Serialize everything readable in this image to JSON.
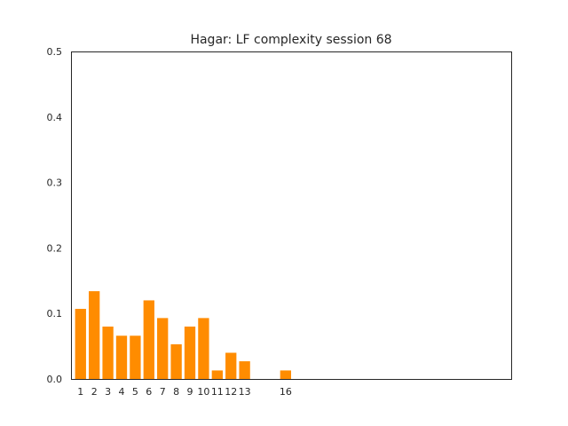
{
  "chart_data": {
    "type": "bar",
    "title": "Hagar: LF complexity session 68",
    "xlabel": "",
    "ylabel": "",
    "bar_color": "#ff8c00",
    "ylim": [
      0,
      0.5
    ],
    "xlim": [
      0.3,
      32.5
    ],
    "grid": false,
    "yticks": [
      "0.0",
      "0.1",
      "0.2",
      "0.3",
      "0.4",
      "0.5"
    ],
    "categories": [
      "1",
      "2",
      "3",
      "4",
      "5",
      "6",
      "7",
      "8",
      "9",
      "10",
      "11",
      "12",
      "13",
      "16"
    ],
    "x": [
      1,
      2,
      3,
      4,
      5,
      6,
      7,
      8,
      9,
      10,
      11,
      12,
      13,
      16
    ],
    "values": [
      0.107,
      0.134,
      0.08,
      0.066,
      0.066,
      0.12,
      0.093,
      0.053,
      0.08,
      0.093,
      0.013,
      0.04,
      0.027,
      0.013
    ]
  }
}
